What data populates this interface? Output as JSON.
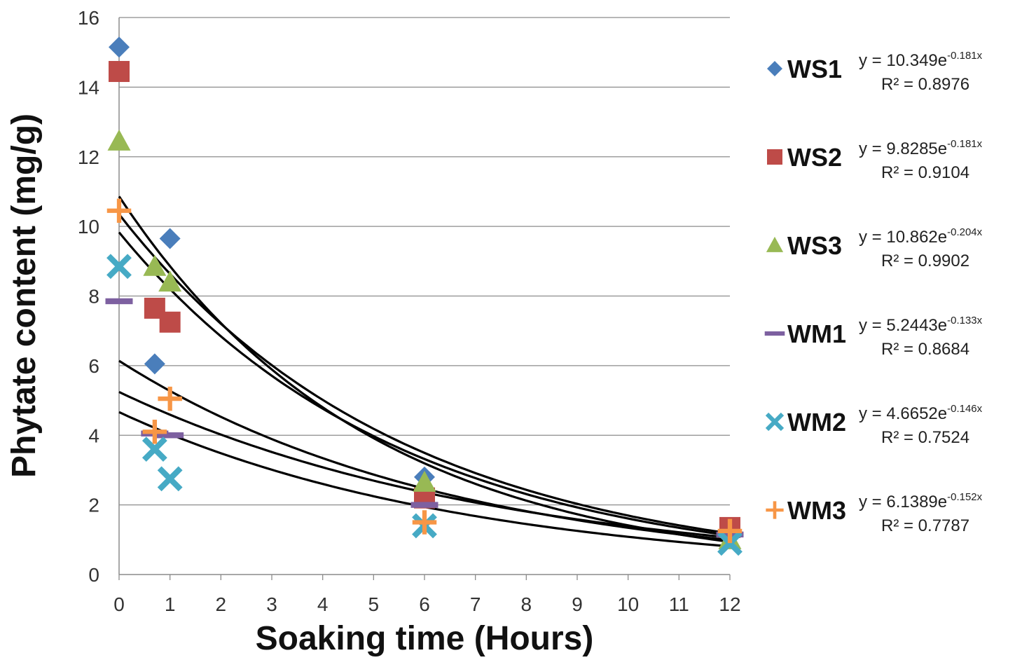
{
  "chart_data": {
    "type": "scatter",
    "xlabel": "Soaking time (Hours)",
    "ylabel": "Phytate content (mg/g)",
    "xlim": [
      0,
      12
    ],
    "ylim": [
      0,
      16
    ],
    "x_ticks": [
      0,
      1,
      2,
      3,
      4,
      5,
      6,
      7,
      8,
      9,
      10,
      11,
      12
    ],
    "y_ticks": [
      0,
      2,
      4,
      6,
      8,
      10,
      12,
      14,
      16
    ],
    "grid": "horizontal",
    "legend_position": "right",
    "trendline": "exponential",
    "series": [
      {
        "name": "WS1",
        "marker": "diamond",
        "color": "#4a7ebb",
        "points": [
          [
            0,
            15.15
          ],
          [
            0.7,
            6.05
          ],
          [
            1,
            9.65
          ],
          [
            6,
            2.8
          ],
          [
            12,
            1.2
          ]
        ],
        "equation": {
          "prefix": "y = 10.349e",
          "exponent": "-0.181x",
          "r2": "R² = 0.8976"
        },
        "fit": {
          "a": 10.349,
          "b": -0.181
        }
      },
      {
        "name": "WS2",
        "marker": "square",
        "color": "#be4b48",
        "points": [
          [
            0,
            14.45
          ],
          [
            0.7,
            7.65
          ],
          [
            1,
            7.25
          ],
          [
            6,
            2.2
          ],
          [
            12,
            1.35
          ]
        ],
        "equation": {
          "prefix": "y = 9.8285e",
          "exponent": "-0.181x",
          "r2": "R² = 0.9104"
        },
        "fit": {
          "a": 9.8285,
          "b": -0.181
        }
      },
      {
        "name": "WS3",
        "marker": "triangle",
        "color": "#98b954",
        "points": [
          [
            0,
            12.45
          ],
          [
            0.7,
            8.85
          ],
          [
            1,
            8.4
          ],
          [
            6,
            2.65
          ],
          [
            12,
            1.0
          ]
        ],
        "equation": {
          "prefix": "y = 10.862e",
          "exponent": "-0.204x",
          "r2": "R² = 0.9902"
        },
        "fit": {
          "a": 10.862,
          "b": -0.204
        }
      },
      {
        "name": "WM1",
        "marker": "dash",
        "color": "#7d60a0",
        "points": [
          [
            0,
            7.85
          ],
          [
            0.7,
            4.05
          ],
          [
            1,
            4.0
          ],
          [
            6,
            2.0
          ],
          [
            12,
            1.15
          ]
        ],
        "equation": {
          "prefix": "y = 5.2443e",
          "exponent": "-0.133x",
          "r2": "R² = 0.8684"
        },
        "fit": {
          "a": 5.2443,
          "b": -0.133
        }
      },
      {
        "name": "WM2",
        "marker": "x",
        "color": "#46aac5",
        "points": [
          [
            0,
            8.85
          ],
          [
            0.7,
            3.6
          ],
          [
            1,
            2.75
          ],
          [
            6,
            1.4
          ],
          [
            12,
            0.9
          ]
        ],
        "equation": {
          "prefix": "y = 4.6652e",
          "exponent": "-0.146x",
          "r2": "R² = 0.7524"
        },
        "fit": {
          "a": 4.6652,
          "b": -0.146
        }
      },
      {
        "name": "WM3",
        "marker": "plus",
        "color": "#f79646",
        "points": [
          [
            0,
            10.45
          ],
          [
            0.7,
            4.1
          ],
          [
            1,
            5.05
          ],
          [
            6,
            1.5
          ],
          [
            12,
            1.25
          ]
        ],
        "equation": {
          "prefix": "y = 6.1389e",
          "exponent": "-0.152x",
          "r2": "R² = 0.7787"
        },
        "fit": {
          "a": 6.1389,
          "b": -0.152
        }
      }
    ]
  }
}
